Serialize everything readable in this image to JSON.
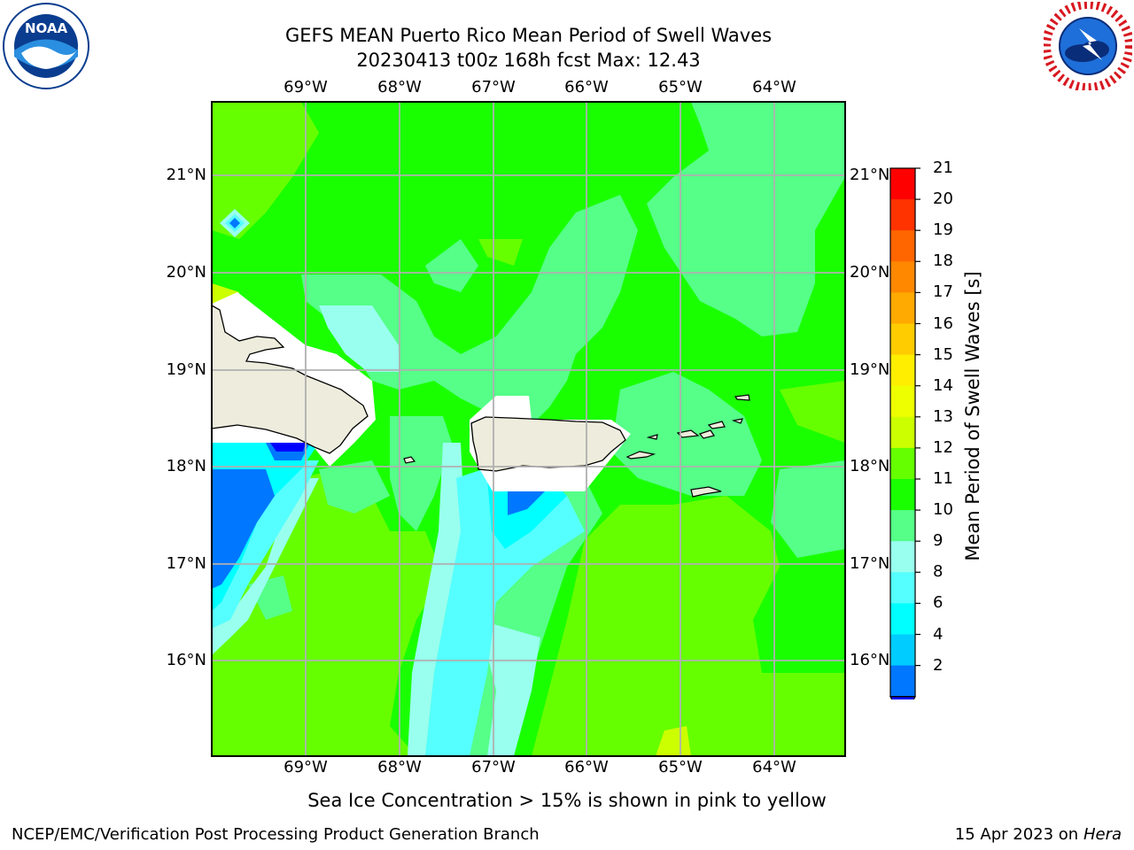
{
  "header": {
    "title_line1": "GEFS MEAN Puerto Rico Mean Period of Swell Waves",
    "title_line2": "20230413 t00z 168h fcst   Max: 12.43"
  },
  "logos": {
    "left": {
      "name": "noaa-logo",
      "text": "NOAA"
    },
    "right": {
      "name": "nws-logo",
      "text": "NATIONAL WEATHER SERVICE"
    }
  },
  "map": {
    "lon_labels": [
      "69°W",
      "68°W",
      "67°W",
      "66°W",
      "65°W",
      "64°W"
    ],
    "lat_labels": [
      "21°N",
      "20°N",
      "19°N",
      "18°N",
      "17°N",
      "16°N"
    ],
    "ocean_color": "#1aff00",
    "land_color": "#eeecdc",
    "grid_color": "#b0b0b0"
  },
  "colorbar": {
    "label": "Mean Period of Swell Waves [s]",
    "ticks": [
      "21",
      "20",
      "19",
      "18",
      "17",
      "16",
      "15",
      "14",
      "13",
      "12",
      "11",
      "10",
      "9",
      "8",
      "6",
      "4",
      "2"
    ],
    "colors": [
      "#ff0000",
      "#ff3300",
      "#ff6600",
      "#ff8800",
      "#ffaa00",
      "#ffcc00",
      "#ffee00",
      "#eeff00",
      "#ccff00",
      "#66ff00",
      "#1aff00",
      "#55ff88",
      "#99ffee",
      "#55ffff",
      "#00ffff",
      "#00ccff",
      "#0077ff"
    ],
    "under_color": "#0000ff"
  },
  "footer": {
    "sea_ice_note": "Sea Ice Concentration > 15% is shown in pink to yellow",
    "branch": "NCEP/EMC/Verification Post Processing Product Generation Branch",
    "date_prefix": "15 Apr 2023 on ",
    "host": "Hera"
  }
}
